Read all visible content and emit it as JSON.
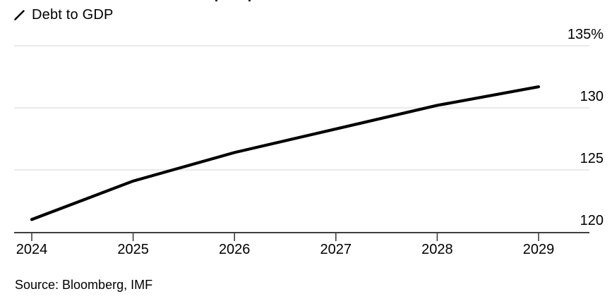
{
  "legend": {
    "label": "Debt to GDP"
  },
  "source": {
    "text": "Source: Bloomberg, IMF"
  },
  "colors": {
    "line": "#000000",
    "grid": "#e3e3e3",
    "axis": "#3f3f3f",
    "tick": "#3f3f3f",
    "text": "#000000",
    "background": "#ffffff"
  },
  "chart_data": {
    "type": "line",
    "title": "",
    "legend": "Debt to GDP",
    "legend_position": "top-left",
    "x": [
      2024,
      2025,
      2026,
      2027,
      2028,
      2029
    ],
    "xtick_labels": [
      "2024",
      "2025",
      "2026",
      "2027",
      "2028",
      "2029"
    ],
    "series": [
      {
        "name": "Debt to GDP",
        "values": [
          121.0,
          124.1,
          126.4,
          128.3,
          130.2,
          131.7
        ]
      }
    ],
    "ylim": [
      120,
      135
    ],
    "ytick_values": [
      120,
      125,
      130,
      135
    ],
    "ytick_labels": [
      "120",
      "125",
      "130",
      "135%"
    ],
    "grid": "horizontal",
    "yaxis_side": "right",
    "source": "Source: Bloomberg, IMF"
  }
}
